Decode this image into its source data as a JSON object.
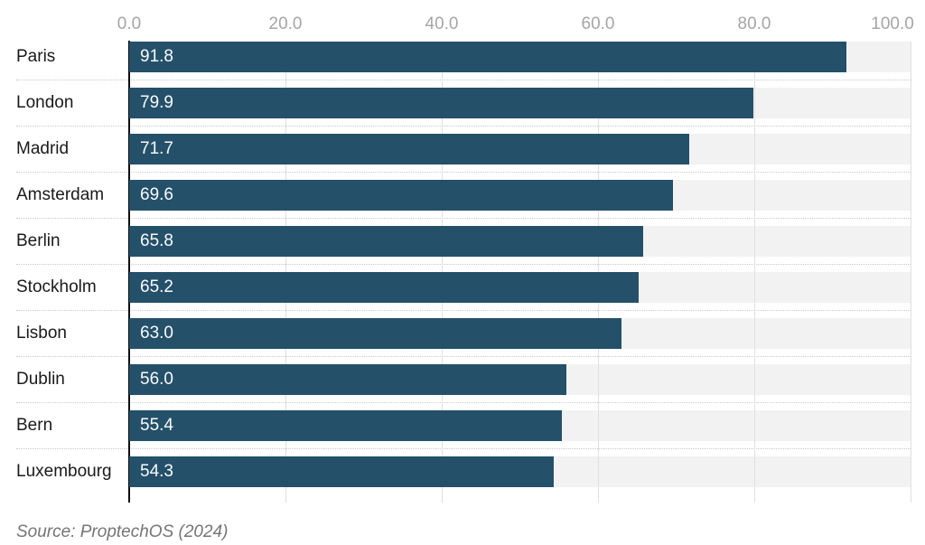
{
  "chart_data": {
    "type": "bar",
    "orientation": "horizontal",
    "title": "",
    "categories": [
      "Paris",
      "London",
      "Madrid",
      "Amsterdam",
      "Berlin",
      "Stockholm",
      "Lisbon",
      "Dublin",
      "Bern",
      "Luxembourg"
    ],
    "values": [
      91.8,
      79.9,
      71.7,
      69.6,
      65.8,
      65.2,
      63.0,
      56.0,
      55.4,
      54.3
    ],
    "value_labels": [
      "91.8",
      "79.9",
      "71.7",
      "69.6",
      "65.8",
      "65.2",
      "63.0",
      "56.0",
      "55.4",
      "54.3"
    ],
    "x_axis": {
      "position": "top",
      "min": 0,
      "max": 100,
      "tick_values": [
        0,
        20,
        40,
        60,
        80,
        100
      ],
      "ticks": [
        "0.0",
        "20.0",
        "40.0",
        "60.0",
        "80.0",
        "100.0"
      ]
    },
    "grid": true,
    "legend": false,
    "source": "Source: ProptechOS (2024)",
    "colors": {
      "bar": "#24506a",
      "track": "#f2f2f2",
      "gridline": "#e0e0e0",
      "axis_line": "#0d0d0d",
      "separator": "#c9c9c9",
      "tick_label": "#a5a5a5",
      "category_label": "#1a1a1a",
      "value_label": "#fafafa",
      "source_text": "#757575"
    }
  }
}
